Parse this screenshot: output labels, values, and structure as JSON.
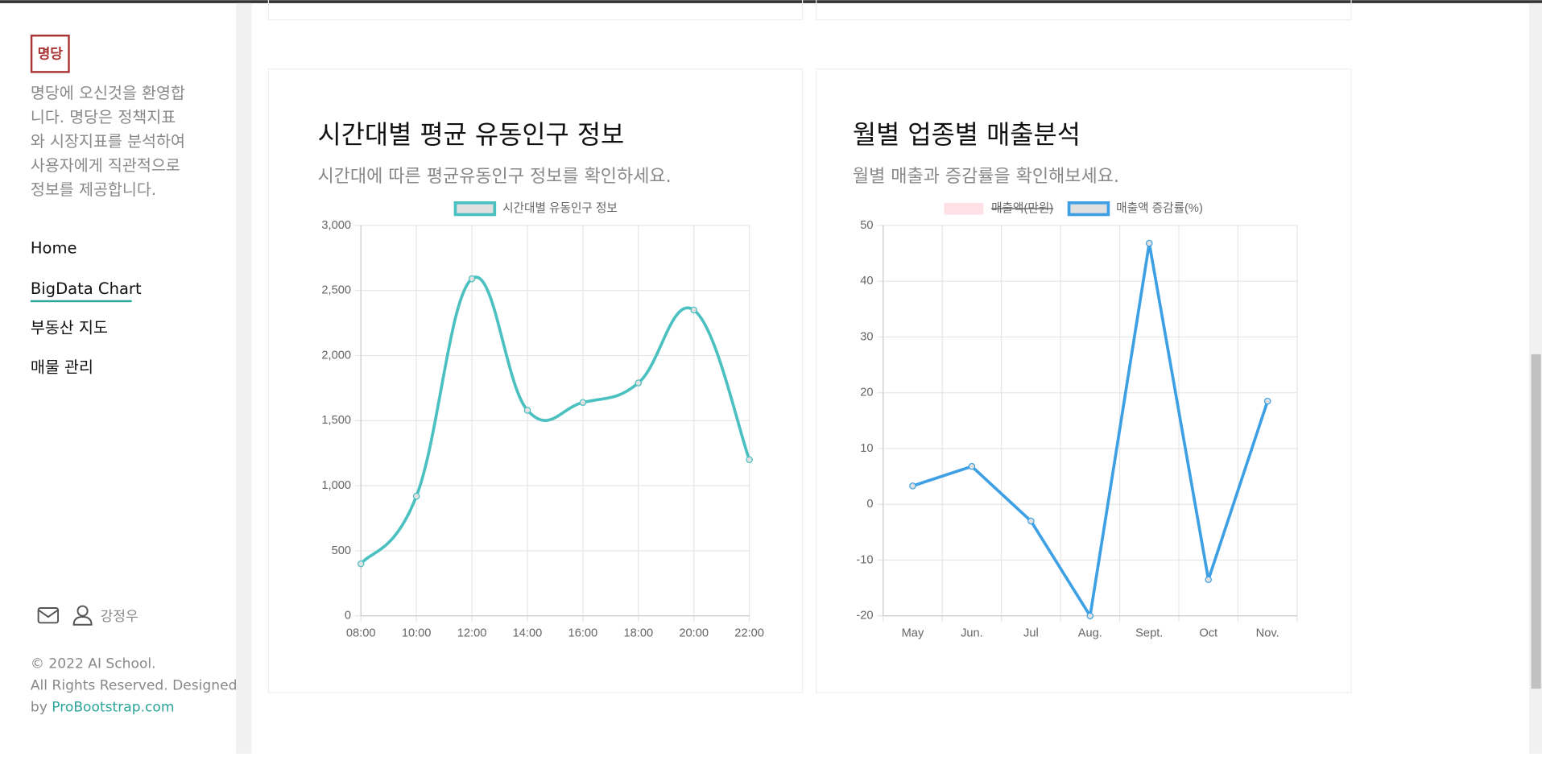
{
  "sidebar": {
    "logo": "명당",
    "description_lines": [
      "명당에 오신것을 환영합",
      "니다. 명당은 정책지표",
      "와 시장지표를 분석하여",
      "사용자에게 직관적으로",
      "정보를 제공합니다."
    ],
    "nav": [
      "Home",
      "BigData Chart",
      "부동산 지도",
      "매물 관리"
    ],
    "user": "강정우",
    "footer": {
      "copyright": "© 2022 AI School.",
      "rights": "All Rights Reserved. Designed",
      "by": "by",
      "link": "ProBootstrap.com"
    }
  },
  "chart_data": [
    {
      "type": "line",
      "title": "시간대별 평균 유동인구 정보",
      "subtitle": "시간대에 따른 평균유동인구 정보를 확인하세요.",
      "categories": [
        "08:00",
        "10:00",
        "12:00",
        "14:00",
        "16:00",
        "18:00",
        "20:00",
        "22:00"
      ],
      "series": [
        {
          "name": "시간대별 유동인구 정보",
          "color": "#4bc0c0",
          "values": [
            400,
            920,
            2590,
            1580,
            1640,
            1790,
            2350,
            1200
          ]
        }
      ],
      "ylim": [
        0,
        3000
      ],
      "yticks": [
        0,
        500,
        {
          "value": 1000,
          "label": "1,000"
        },
        {
          "value": 1500,
          "label": "1,500"
        },
        {
          "value": 2000,
          "label": "2,000"
        },
        {
          "value": 2500,
          "label": "2,500"
        },
        {
          "value": 3000,
          "label": "3,000"
        }
      ],
      "grid": true,
      "smooth": true
    },
    {
      "type": "line",
      "title": "월별 업종별 매출분석",
      "subtitle": "월별 매출과 증감률을 확인해보세요.",
      "categories": [
        "May",
        "Jun.",
        "Jul",
        "Aug.",
        "Sept.",
        "Oct",
        "Nov."
      ],
      "series": [
        {
          "name": "매출액(만원)",
          "color": "#ffe0e6",
          "hidden": true,
          "values": [
            null,
            null,
            null,
            null,
            null,
            null,
            null
          ]
        },
        {
          "name": "매출액 증감률(%)",
          "color": "#3ea0e4",
          "values": [
            3.3,
            6.8,
            -3,
            -20,
            46.8,
            -13.5,
            18.5
          ]
        }
      ],
      "ylim": [
        -20,
        50
      ],
      "yticks": [
        -20,
        -10,
        0,
        10,
        20,
        30,
        40,
        50
      ],
      "grid": true,
      "smooth": false
    }
  ]
}
